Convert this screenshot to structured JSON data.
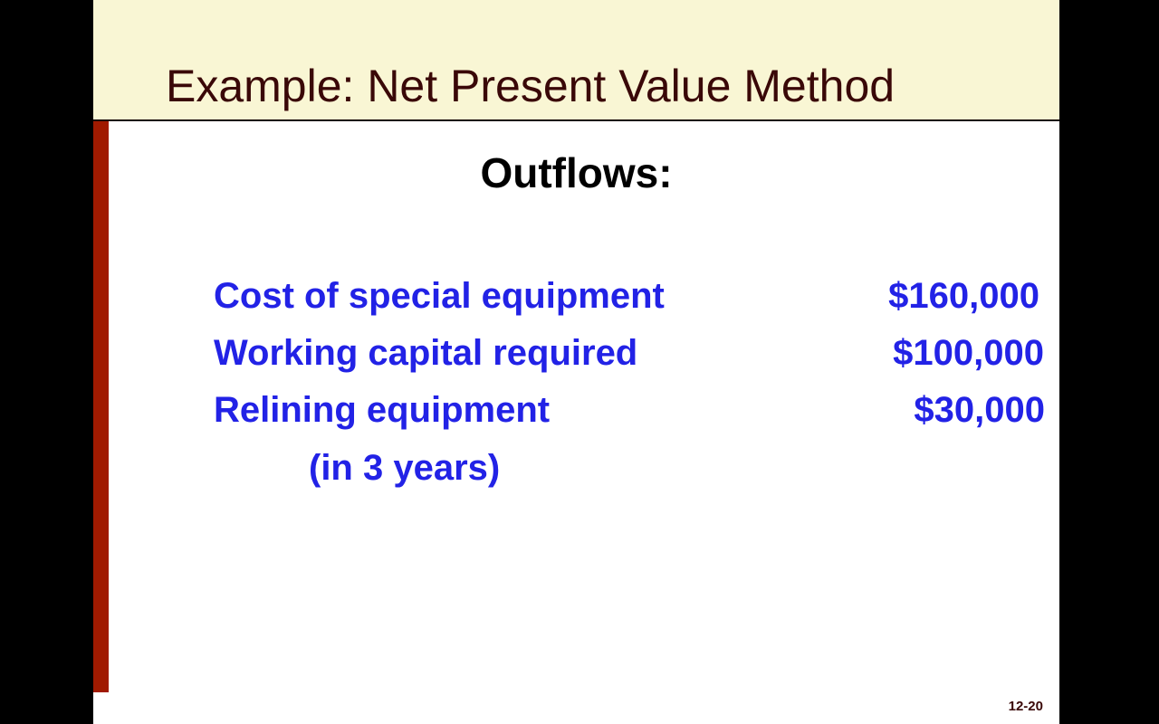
{
  "slide": {
    "title": "Example: Net Present Value Method",
    "heading": "Outflows:",
    "items": [
      {
        "label": "Cost of special equipment",
        "amount": "$160,000"
      },
      {
        "label": "Working capital required",
        "amount": "$100,000"
      },
      {
        "label": "Relining equipment",
        "amount": "$30,000",
        "note": "(in 3 years)"
      }
    ],
    "page_number": "12-20"
  },
  "colors": {
    "title_band": "#f9f6d4",
    "accent_bar": "#a01a00",
    "title_text": "#3a0808",
    "body_text": "#2222e6"
  }
}
